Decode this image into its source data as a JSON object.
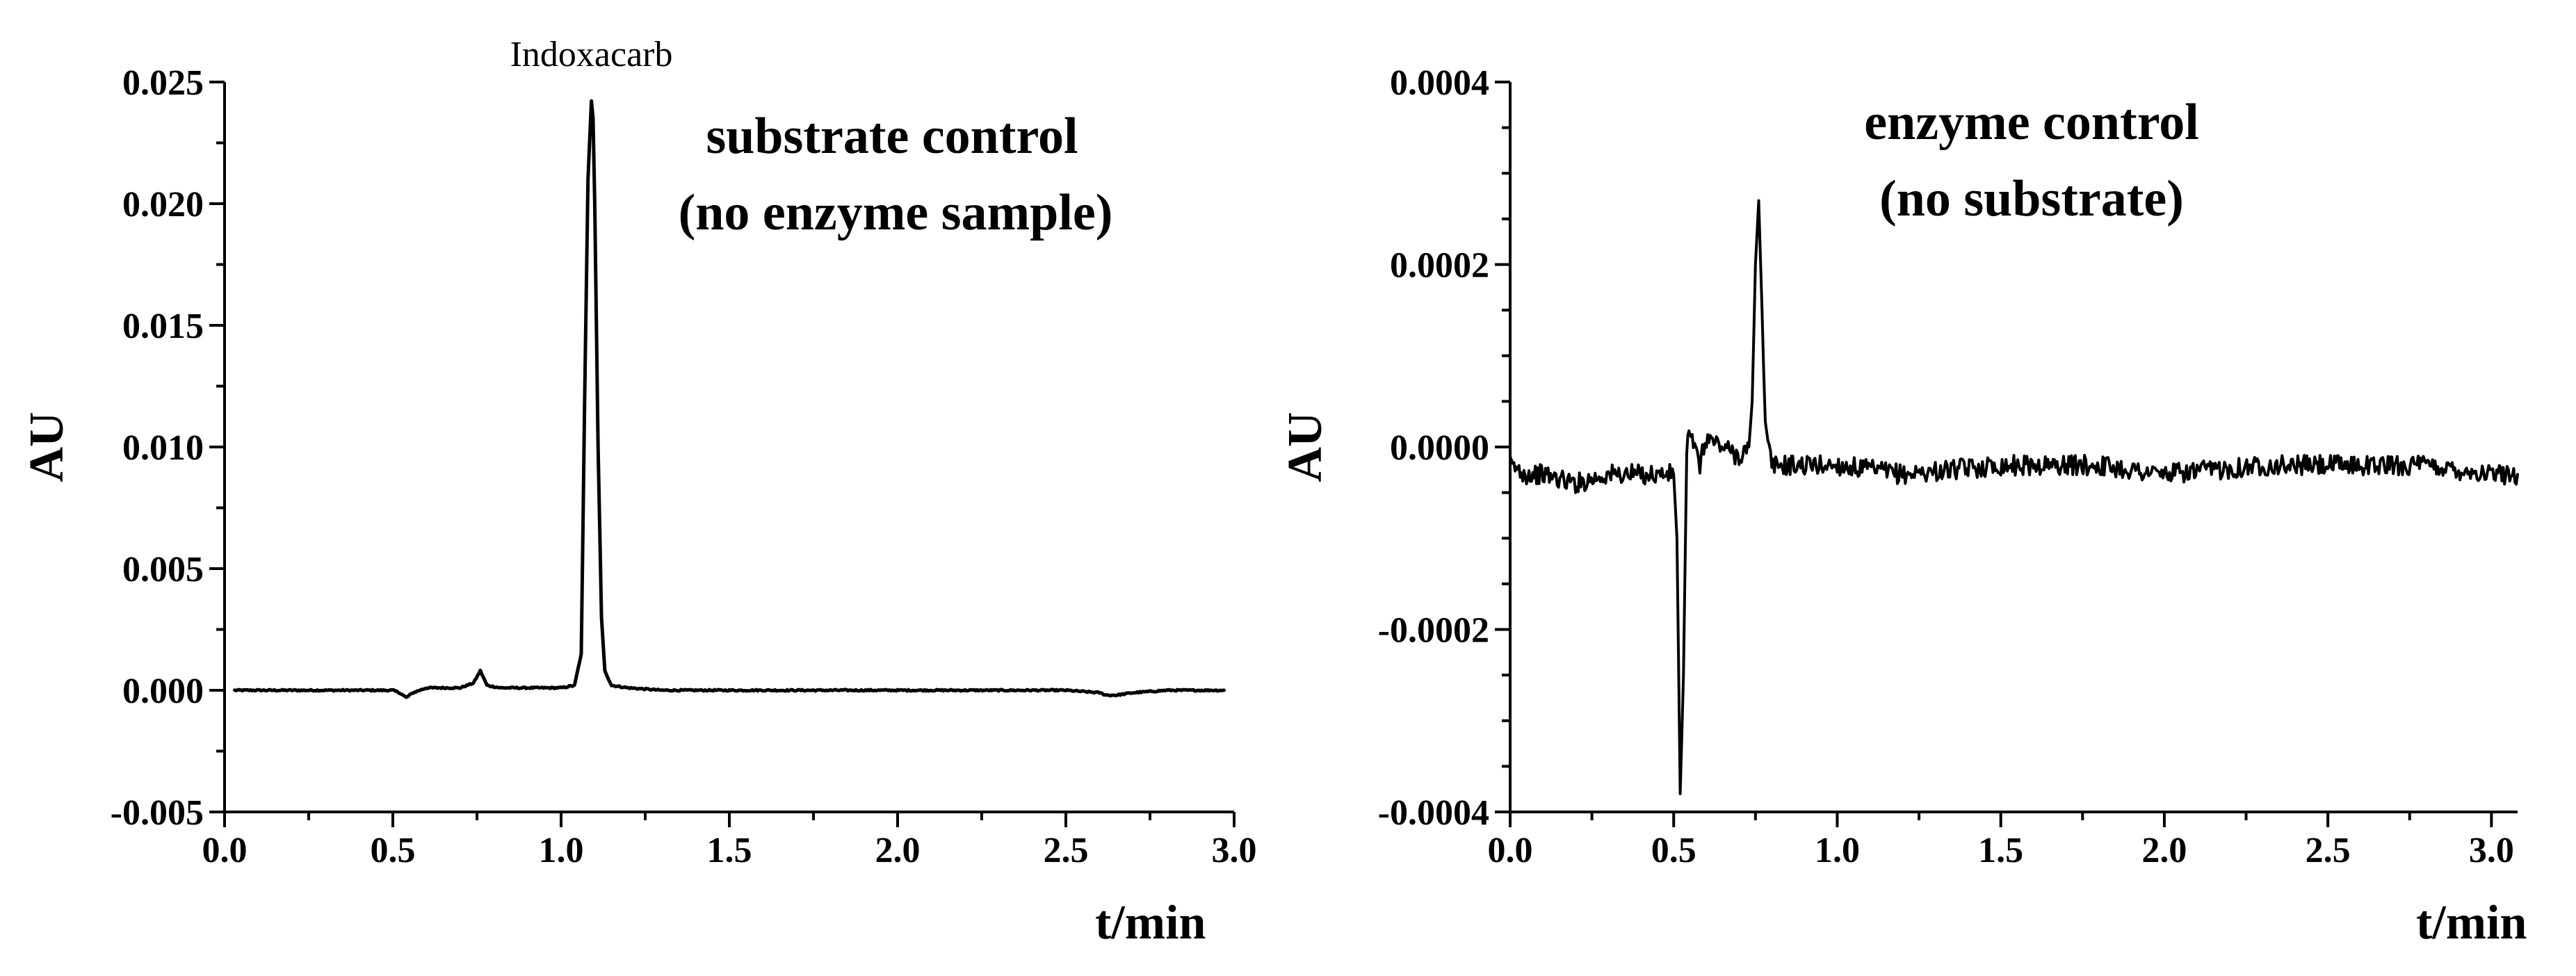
{
  "chart_data": [
    {
      "type": "line",
      "title": "substrate control",
      "subtitle": "(no enzyme sample)",
      "xlabel": "t/min",
      "ylabel": "AU",
      "xlim": [
        0.0,
        3.0
      ],
      "ylim": [
        -0.005,
        0.025
      ],
      "xticks": [
        "0.0",
        "0.5",
        "1.0",
        "1.5",
        "2.0",
        "2.5",
        "3.0"
      ],
      "yticks": [
        "-0.005",
        "0.000",
        "0.005",
        "0.010",
        "0.015",
        "0.020",
        "0.025"
      ],
      "annotations": [
        {
          "text": "Indoxacarb",
          "x": 1.09
        }
      ],
      "series": [
        {
          "name": "substrate control",
          "x": [
            0.03,
            0.1,
            0.2,
            0.3,
            0.4,
            0.5,
            0.52,
            0.54,
            0.56,
            0.6,
            0.7,
            0.74,
            0.76,
            0.78,
            0.82,
            0.9,
            1.0,
            1.04,
            1.06,
            1.07,
            1.08,
            1.09,
            1.095,
            1.1,
            1.11,
            1.12,
            1.13,
            1.15,
            1.2,
            1.3,
            1.5,
            2.0,
            2.5,
            2.6,
            2.62,
            2.65,
            2.7,
            2.8,
            2.97
          ],
          "values": [
            0.0,
            0.0,
            0.0,
            0.0,
            0.0,
            0.0,
            -0.0001,
            -0.0003,
            -0.0001,
            0.0001,
            0.0001,
            0.0003,
            0.0008,
            0.0002,
            0.0001,
            0.0001,
            0.0001,
            0.0002,
            0.0015,
            0.012,
            0.021,
            0.0242,
            0.0235,
            0.02,
            0.01,
            0.003,
            0.0008,
            0.0002,
            0.0001,
            0.0,
            0.0,
            0.0,
            0.0,
            -0.0001,
            -0.0002,
            -0.0002,
            -0.0001,
            0.0,
            0.0
          ]
        }
      ]
    },
    {
      "type": "line",
      "title": "enzyme control",
      "subtitle": "(no substrate)",
      "xlabel": "t/min",
      "ylabel": "AU",
      "xlim": [
        0.0,
        3.0
      ],
      "ylim": [
        -0.0004,
        0.0004
      ],
      "xticks": [
        "0.0",
        "0.5",
        "1.0",
        "1.5",
        "2.0",
        "2.5",
        "3.0"
      ],
      "yticks": [
        "-0.0004",
        "-0.0002",
        "0.0000",
        "0.0002",
        "0.0004"
      ],
      "series": [
        {
          "name": "enzyme control",
          "x": [
            0.0,
            0.05,
            0.1,
            0.2,
            0.3,
            0.4,
            0.5,
            0.51,
            0.52,
            0.53,
            0.54,
            0.55,
            0.56,
            0.58,
            0.6,
            0.65,
            0.7,
            0.73,
            0.74,
            0.75,
            0.76,
            0.77,
            0.78,
            0.8,
            0.9,
            1.0,
            1.2,
            1.5,
            1.8,
            2.0,
            2.3,
            2.5,
            2.8,
            3.0,
            3.08
          ],
          "values": [
            -2e-05,
            -3e-05,
            -3e-05,
            -4e-05,
            -3e-05,
            -3e-05,
            -3e-05,
            -0.0001,
            -0.00038,
            -0.00025,
            0.0,
            2e-05,
            0.0,
            -2e-05,
            1e-05,
            0.0,
            -1e-05,
            0.0,
            5e-05,
            0.0002,
            0.00027,
            0.00015,
            2e-05,
            -2e-05,
            -2e-05,
            -2e-05,
            -3e-05,
            -2e-05,
            -2e-05,
            -3e-05,
            -2e-05,
            -2e-05,
            -2e-05,
            -3e-05,
            -3e-05
          ]
        }
      ]
    }
  ]
}
